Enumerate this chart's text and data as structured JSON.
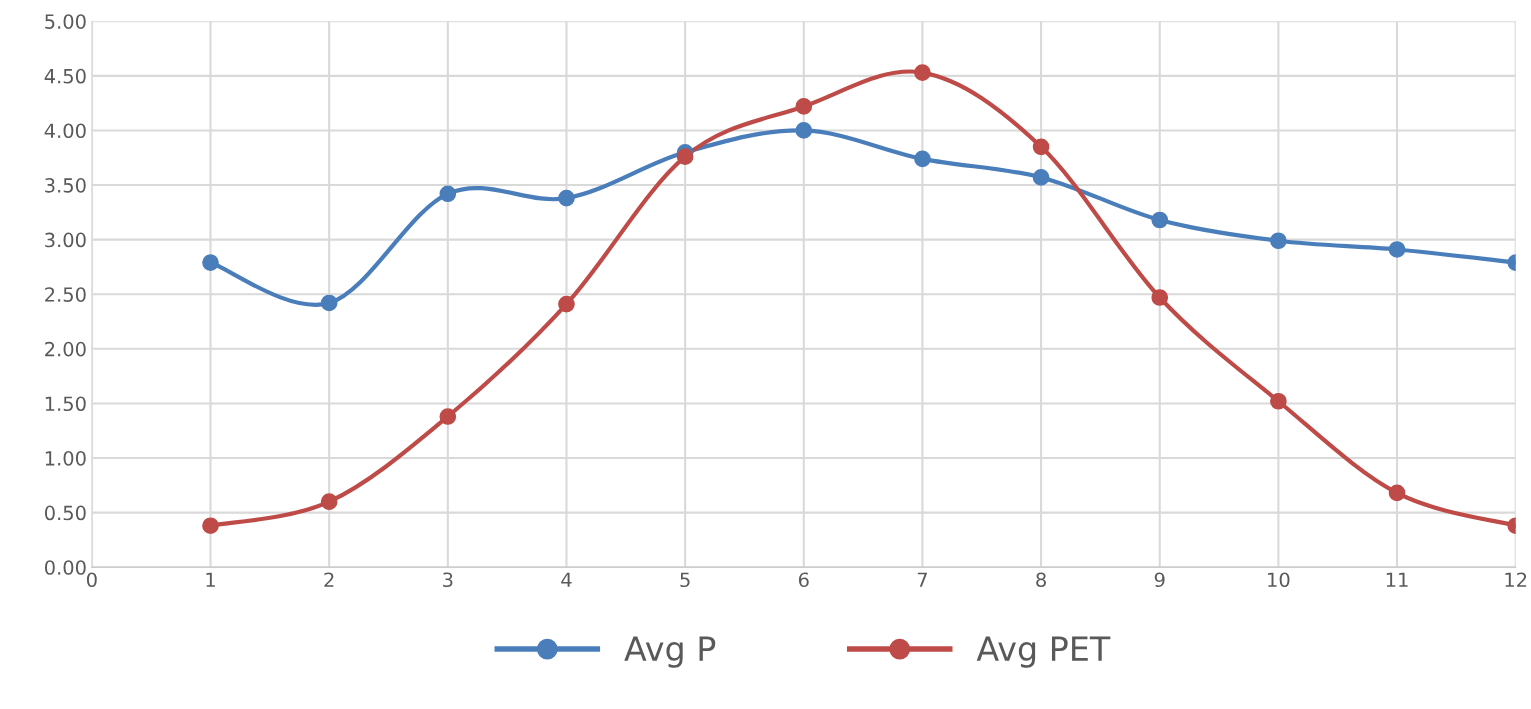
{
  "chart_data": {
    "type": "line",
    "x": [
      1,
      2,
      3,
      4,
      5,
      6,
      7,
      8,
      9,
      10,
      11,
      12
    ],
    "series": [
      {
        "name": "Avg P",
        "color": "#4a7ebb",
        "values": [
          2.79,
          2.42,
          3.42,
          3.38,
          3.8,
          4.0,
          3.74,
          3.57,
          3.18,
          2.99,
          2.91,
          2.79
        ]
      },
      {
        "name": "Avg PET",
        "color": "#be4b48",
        "values": [
          0.38,
          0.6,
          1.38,
          2.41,
          3.76,
          4.22,
          4.53,
          3.85,
          2.47,
          1.52,
          0.68,
          0.38
        ]
      }
    ],
    "xlim": [
      0,
      12
    ],
    "xticks": [
      0,
      1,
      2,
      3,
      4,
      5,
      6,
      7,
      8,
      9,
      10,
      11,
      12
    ],
    "ylim": [
      0,
      5
    ],
    "yticks": [
      {
        "value": 0,
        "label": "0.00"
      },
      {
        "value": 0.5,
        "label": "0.50"
      },
      {
        "value": 1,
        "label": "1.00"
      },
      {
        "value": 1.5,
        "label": "1.50"
      },
      {
        "value": 2,
        "label": "2.00"
      },
      {
        "value": 2.5,
        "label": "2.50"
      },
      {
        "value": 3,
        "label": "3.00"
      },
      {
        "value": 3.5,
        "label": "3.50"
      },
      {
        "value": 4,
        "label": "4.00"
      },
      {
        "value": 4.5,
        "label": "4.50"
      },
      {
        "value": 5,
        "label": "5.00"
      }
    ],
    "grid": true,
    "legend": "bottom",
    "marker": "circle",
    "line_style": "solid"
  }
}
